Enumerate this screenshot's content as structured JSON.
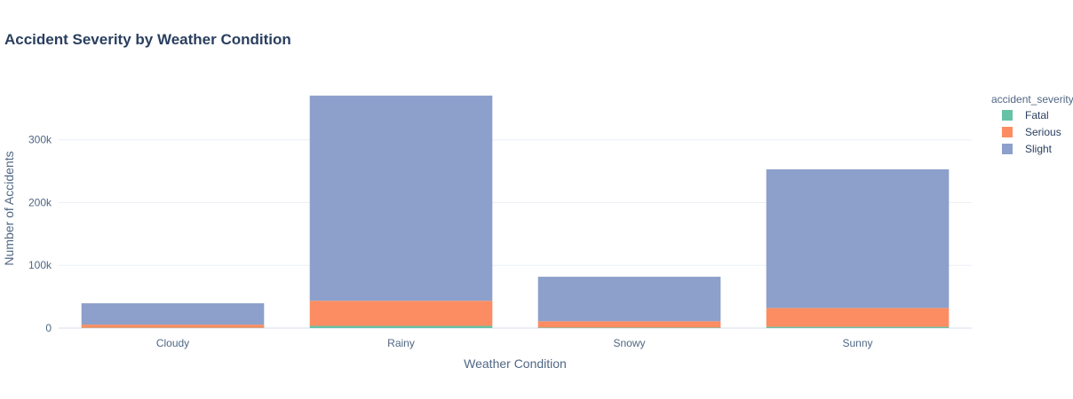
{
  "chart_data": {
    "type": "bar",
    "stacked": true,
    "title": "Accident Severity by Weather Condition",
    "xlabel": "Weather Condition",
    "ylabel": "Number of Accidents",
    "categories": [
      "Cloudy",
      "Rainy",
      "Snowy",
      "Sunny"
    ],
    "series": [
      {
        "name": "Fatal",
        "color": "#66c2a5",
        "values": [
          500,
          3500,
          800,
          2000
        ]
      },
      {
        "name": "Serious",
        "color": "#fc8d62",
        "values": [
          5000,
          40000,
          10000,
          30000
        ]
      },
      {
        "name": "Slight",
        "color": "#8da0cb",
        "values": [
          34000,
          327000,
          71000,
          221000
        ]
      }
    ],
    "ylim": [
      0,
      390000
    ],
    "yticks": [
      0,
      100000,
      200000,
      300000
    ],
    "ytick_labels": [
      "0",
      "100k",
      "200k",
      "300k"
    ],
    "legend": {
      "title": "accident_severity",
      "placement": "right"
    },
    "grid": true
  }
}
